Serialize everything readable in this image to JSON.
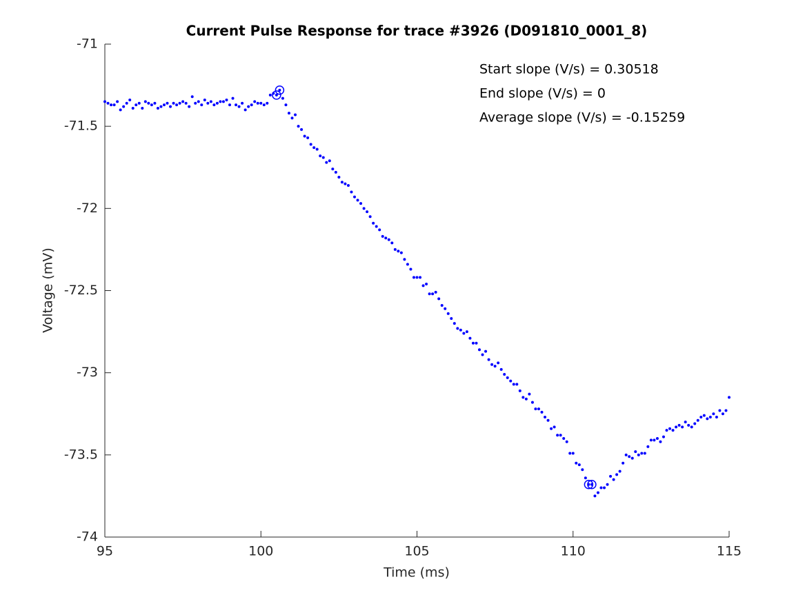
{
  "chart_data": {
    "type": "scatter",
    "title": "Current Pulse Response for trace #3926 (D091810_0001_8)",
    "x_label": "Time (ms)",
    "y_label": "Voltage (mV)",
    "annotations": [
      "Start slope (V/s) = 0.30518",
      "End slope (V/s) = 0",
      "Average slope (V/s) = -0.15259"
    ],
    "xlim": [
      95,
      115
    ],
    "xticks": [
      95,
      100,
      105,
      110,
      115
    ],
    "ylim": [
      -74,
      -71
    ],
    "yticks": [
      -74,
      -73.5,
      -73,
      -72.5,
      -72,
      -71.5,
      -71
    ],
    "grid": false,
    "series": [
      {
        "color": "#0000ff",
        "marker": "dot",
        "x": [
          95,
          95.1,
          95.2,
          95.3,
          95.4,
          95.5,
          95.6,
          95.7,
          95.8,
          95.9,
          96,
          96.1,
          96.2,
          96.3,
          96.4,
          96.5,
          96.6,
          96.7,
          96.8,
          96.9,
          97,
          97.1,
          97.2,
          97.3,
          97.4,
          97.5,
          97.6,
          97.7,
          97.8,
          97.9,
          98,
          98.1,
          98.2,
          98.3,
          98.4,
          98.5,
          98.6,
          98.7,
          98.8,
          98.9,
          99,
          99.1,
          99.2,
          99.3,
          99.4,
          99.5,
          99.6,
          99.7,
          99.8,
          99.9,
          100,
          100.1,
          100.2,
          100.3,
          100.4,
          100.5,
          100.6,
          100.7,
          100.8,
          100.9,
          101,
          101.1,
          101.2,
          101.3,
          101.4,
          101.5,
          101.6,
          101.7,
          101.8,
          101.9,
          102,
          102.1,
          102.2,
          102.3,
          102.4,
          102.5,
          102.6,
          102.7,
          102.8,
          102.9,
          103,
          103.1,
          103.2,
          103.3,
          103.4,
          103.5,
          103.6,
          103.7,
          103.8,
          103.9,
          104,
          104.1,
          104.2,
          104.3,
          104.4,
          104.5,
          104.6,
          104.7,
          104.8,
          104.9,
          105,
          105.1,
          105.2,
          105.3,
          105.4,
          105.5,
          105.6,
          105.7,
          105.8,
          105.9,
          106,
          106.1,
          106.2,
          106.3,
          106.4,
          106.5,
          106.6,
          106.7,
          106.8,
          106.9,
          107,
          107.1,
          107.2,
          107.3,
          107.4,
          107.5,
          107.6,
          107.7,
          107.8,
          107.9,
          108,
          108.1,
          108.2,
          108.3,
          108.4,
          108.5,
          108.6,
          108.7,
          108.8,
          108.9,
          109,
          109.1,
          109.2,
          109.3,
          109.4,
          109.5,
          109.6,
          109.7,
          109.8,
          109.9,
          110,
          110.1,
          110.2,
          110.3,
          110.4,
          110.5,
          110.6,
          110.7,
          110.8,
          110.9,
          111,
          111.1,
          111.2,
          111.3,
          111.4,
          111.5,
          111.6,
          111.7,
          111.8,
          111.9,
          112,
          112.1,
          112.2,
          112.3,
          112.4,
          112.5,
          112.6,
          112.7,
          112.8,
          112.9,
          113,
          113.1,
          113.2,
          113.3,
          113.4,
          113.5,
          113.6,
          113.7,
          113.8,
          113.9,
          114,
          114.1,
          114.2,
          114.3,
          114.4,
          114.5,
          114.6,
          114.7,
          114.8,
          114.9,
          115
        ],
        "values": [
          -71.35,
          -71.36,
          -71.37,
          -71.37,
          -71.35,
          -71.4,
          -71.38,
          -71.36,
          -71.34,
          -71.39,
          -71.37,
          -71.36,
          -71.39,
          -71.35,
          -71.36,
          -71.37,
          -71.36,
          -71.39,
          -71.38,
          -71.37,
          -71.36,
          -71.38,
          -71.36,
          -71.37,
          -71.36,
          -71.35,
          -71.36,
          -71.38,
          -71.32,
          -71.36,
          -71.35,
          -71.37,
          -71.34,
          -71.36,
          -71.35,
          -71.37,
          -71.36,
          -71.35,
          -71.35,
          -71.34,
          -71.37,
          -71.33,
          -71.37,
          -71.38,
          -71.36,
          -71.4,
          -71.38,
          -71.37,
          -71.35,
          -71.36,
          -71.36,
          -71.37,
          -71.36,
          -71.31,
          -71.3,
          -71.31,
          -71.28,
          -71.33,
          -71.37,
          -71.42,
          -71.45,
          -71.43,
          -71.5,
          -71.52,
          -71.56,
          -71.57,
          -71.61,
          -71.63,
          -71.64,
          -71.68,
          -71.69,
          -71.72,
          -71.71,
          -71.76,
          -71.78,
          -71.81,
          -71.84,
          -71.85,
          -71.86,
          -71.9,
          -71.93,
          -71.95,
          -71.97,
          -72,
          -72.02,
          -72.05,
          -72.09,
          -72.11,
          -72.13,
          -72.17,
          -72.18,
          -72.19,
          -72.21,
          -72.25,
          -72.26,
          -72.27,
          -72.31,
          -72.34,
          -72.37,
          -72.42,
          -72.42,
          -72.42,
          -72.47,
          -72.46,
          -72.52,
          -72.52,
          -72.51,
          -72.55,
          -72.59,
          -72.61,
          -72.64,
          -72.67,
          -72.7,
          -72.73,
          -72.74,
          -72.76,
          -72.75,
          -72.79,
          -72.82,
          -72.82,
          -72.86,
          -72.89,
          -72.87,
          -72.92,
          -72.95,
          -72.96,
          -72.94,
          -72.98,
          -73.01,
          -73.03,
          -73.05,
          -73.07,
          -73.07,
          -73.11,
          -73.15,
          -73.16,
          -73.13,
          -73.18,
          -73.22,
          -73.22,
          -73.24,
          -73.27,
          -73.29,
          -73.34,
          -73.33,
          -73.38,
          -73.38,
          -73.4,
          -73.42,
          -73.49,
          -73.49,
          -73.55,
          -73.56,
          -73.59,
          -73.64,
          -73.68,
          -73.68,
          -73.75,
          -73.73,
          -73.7,
          -73.7,
          -73.68,
          -73.63,
          -73.65,
          -73.62,
          -73.6,
          -73.55,
          -73.5,
          -73.51,
          -73.52,
          -73.48,
          -73.5,
          -73.49,
          -73.49,
          -73.45,
          -73.41,
          -73.41,
          -73.4,
          -73.42,
          -73.39,
          -73.35,
          -73.34,
          -73.35,
          -73.33,
          -73.32,
          -73.33,
          -73.3,
          -73.32,
          -73.33,
          -73.31,
          -73.29,
          -73.27,
          -73.26,
          -73.28,
          -73.27,
          -73.25,
          -73.27,
          -73.23,
          -73.25,
          -73.23,
          -73.15
        ]
      },
      {
        "color": "#0000ff",
        "marker": "circle",
        "x": [
          100.5,
          100.6,
          110.5,
          110.6
        ],
        "values": [
          -71.31,
          -71.28,
          -73.68,
          -73.68
        ]
      }
    ]
  }
}
